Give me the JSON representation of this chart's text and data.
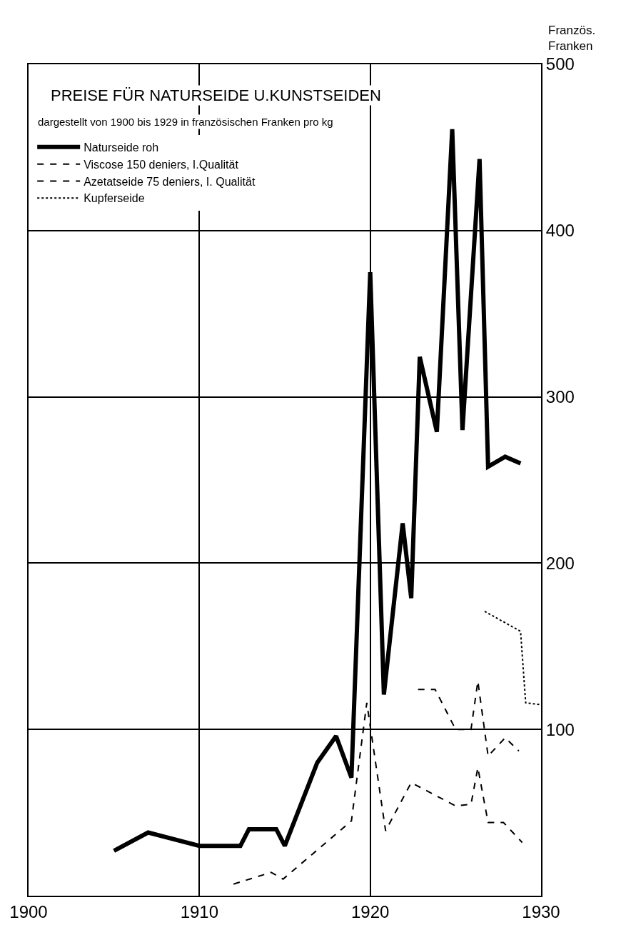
{
  "chart_data": {
    "type": "line",
    "title": "PREISE FÜR NATURSEIDE U.KUNSTSEIDEN",
    "subtitle": "dargestellt von 1900 bis 1929 in französischen Franken pro kg",
    "ylabel": "Französ. Franken",
    "xlim": [
      1900,
      1930
    ],
    "xticks": [
      1900,
      1910,
      1920,
      1930
    ],
    "ylim": [
      0,
      500
    ],
    "yticks": [
      100,
      200,
      300,
      400,
      500
    ],
    "grid": true,
    "legend": "top left",
    "series": [
      {
        "name": "Naturseide roh",
        "color": "#000000",
        "line_style": "solid",
        "x": [
          1905,
          1907,
          1910,
          1912.4,
          1912.9,
          1914.5,
          1915,
          1916.9,
          1918,
          1918.9,
          1920,
          1920.8,
          1921.9,
          1922.4,
          1922.9,
          1923.9,
          1924.8,
          1925.4,
          1926.4,
          1926.9,
          1927.9,
          1928.8
        ],
        "values": [
          27,
          38,
          30,
          30,
          40,
          40,
          30,
          80,
          96,
          71,
          375,
          121,
          224,
          179,
          324,
          279,
          461,
          280,
          443,
          258,
          264,
          260
        ]
      },
      {
        "name": "Viscose 150 deniers, I.Qualität",
        "color": "#000000",
        "line_style": "dashed",
        "x": [
          1912,
          1914.2,
          1914.9,
          1918.9,
          1919.8,
          1920.9,
          1922.4,
          1925,
          1925.9,
          1926.3,
          1926.9,
          1927.8,
          1928.9
        ],
        "values": [
          7,
          14,
          10,
          45,
          116,
          39,
          68,
          54,
          55,
          77,
          44,
          44,
          32
        ]
      },
      {
        "name": "Azetatseide 75 deniers, I. Qualität",
        "color": "#000000",
        "line_style": "dashed",
        "x": [
          1922.8,
          1923.8,
          1925,
          1925.9,
          1926.3,
          1926.9,
          1927.9,
          1928.7
        ],
        "values": [
          124,
          124,
          100,
          100,
          129,
          84,
          95,
          87
        ]
      },
      {
        "name": "Kupferseide",
        "color": "#000000",
        "line_style": "dotted",
        "x": [
          1926.7,
          1928.8,
          1929.1,
          1929.9
        ],
        "values": [
          171,
          159,
          116,
          115
        ]
      }
    ]
  }
}
